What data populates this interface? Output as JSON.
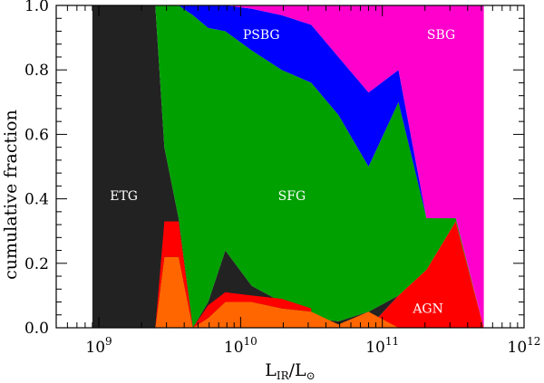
{
  "chart_data": {
    "type": "area",
    "x_scale": "log",
    "xlim": [
      500000000.0,
      1000000000000.0
    ],
    "ylim": [
      0.0,
      1.0
    ],
    "ylabel": "cumulative fraction",
    "xlabel": {
      "main": "L",
      "sub1": "IR",
      "mid": "/L",
      "sub2": "⊙"
    },
    "x_ticks": [
      {
        "value": 1000000000.0,
        "base": "10",
        "exp": "9"
      },
      {
        "value": 10000000000.0,
        "base": "10",
        "exp": "10"
      },
      {
        "value": 100000000000.0,
        "base": "10",
        "exp": "11"
      },
      {
        "value": 1000000000000.0,
        "base": "10",
        "exp": "12"
      }
    ],
    "y_ticks": [
      "0.0",
      "0.2",
      "0.4",
      "0.6",
      "0.8",
      "1.0"
    ],
    "x": [
      900000000.0,
      2500000000.0,
      2900000000.0,
      3650000000.0,
      4600000000.0,
      5900000000.0,
      7800000000.0,
      12000000000.0,
      19500000000.0,
      31500000000.0,
      49000000000.0,
      80000000000.0,
      130000000000.0,
      205000000000.0,
      330000000000.0,
      520000000000.0
    ],
    "series": [
      {
        "name": "AGN",
        "color": "#ff0000",
        "boundaries": [
          0.0,
          0.0,
          0.0,
          0.0,
          0.0,
          0.0,
          0.0,
          0.0,
          0.0,
          0.0,
          0.0,
          0.0,
          0.1,
          0.18,
          0.33,
          0.0
        ]
      },
      {
        "name": "ETG",
        "color": "#222222",
        "boundaries": [
          1.0,
          1.0,
          0.56,
          0.34,
          0.0,
          0.08,
          0.24,
          0.13,
          0.08,
          0.03,
          0.02,
          0.05,
          0.1,
          0.18,
          0.33,
          0.0
        ]
      },
      {
        "name": "SFG",
        "color": "#00a000",
        "boundaries": [
          1.0,
          1.0,
          1.0,
          1.0,
          0.97,
          0.93,
          0.92,
          0.86,
          0.8,
          0.76,
          0.66,
          0.5,
          0.7,
          0.34,
          0.34,
          0.0
        ]
      },
      {
        "name": "PSBG",
        "color": "#0000ff",
        "boundaries": [
          1.0,
          1.0,
          1.0,
          1.0,
          1.0,
          1.0,
          1.0,
          0.99,
          0.97,
          0.94,
          0.84,
          0.73,
          0.8,
          0.34,
          0.34,
          0.0
        ]
      },
      {
        "name": "SBG",
        "color": "#ff00cc",
        "boundaries": [
          1.0,
          1.0,
          1.0,
          1.0,
          1.0,
          1.0,
          1.0,
          1.0,
          1.0,
          1.0,
          1.0,
          1.0,
          1.0,
          1.0,
          1.0,
          1.0
        ]
      }
    ],
    "overlay_band": {
      "color": "#ff6600",
      "lower": [
        0.0,
        0.0,
        0.0,
        0.0,
        0.0,
        0.0,
        0.0,
        0.0,
        0.0,
        0.0,
        0.0,
        0.0,
        0.0,
        0.0,
        0.0,
        0.0
      ],
      "upper": [
        0.0,
        0.0,
        0.22,
        0.22,
        0.0,
        0.03,
        0.08,
        0.08,
        0.06,
        0.05,
        0.01,
        0.05,
        0.0,
        0.0,
        0.0,
        0.0
      ]
    },
    "extra_red": {
      "x": [
        2500000000.0,
        2900000000.0,
        3650000000.0,
        4600000000.0,
        5900000000.0,
        7800000000.0,
        12000000000.0,
        19500000000.0,
        31500000000.0
      ],
      "lower": [
        0.0,
        0.22,
        0.22,
        0.0,
        0.03,
        0.08,
        0.08,
        0.06,
        0.05
      ],
      "upper": [
        0.0,
        0.33,
        0.33,
        0.0,
        0.07,
        0.11,
        0.1,
        0.09,
        0.06
      ]
    },
    "labels": [
      {
        "text": "ETG",
        "x": 1500000000.0,
        "y": 0.41
      },
      {
        "text": "SFG",
        "x": 23000000000.0,
        "y": 0.41
      },
      {
        "text": "PSBG",
        "x": 14000000000.0,
        "y": 0.91
      },
      {
        "text": "SBG",
        "x": 260000000000.0,
        "y": 0.91
      },
      {
        "text": "AGN",
        "x": 210000000000.0,
        "y": 0.06
      }
    ]
  }
}
